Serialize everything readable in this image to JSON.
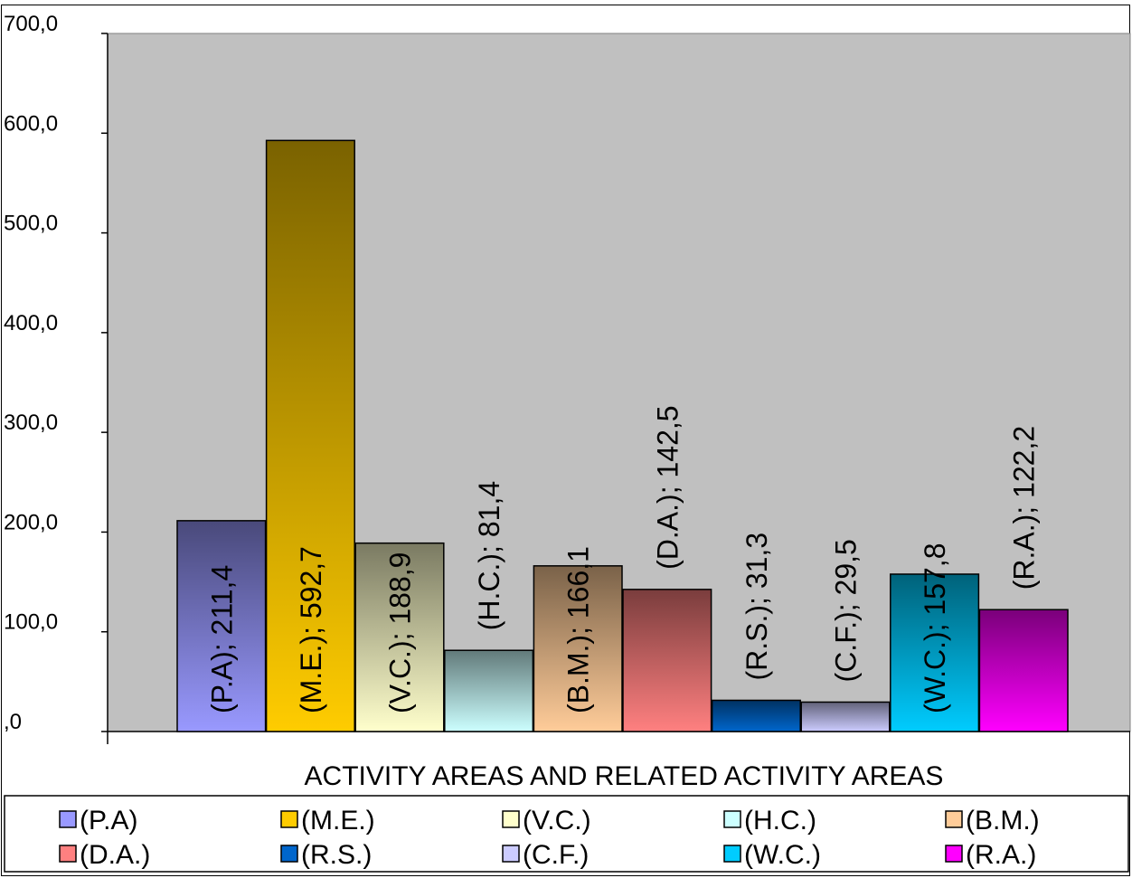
{
  "chart_data": {
    "type": "bar",
    "title": "",
    "xlabel": "ACTIVITY AREAS AND RELATED ACTIVITY AREAS",
    "ylabel": "",
    "ylim": [
      0,
      700
    ],
    "yticks": [
      "700,0",
      "600,0",
      "500,0",
      "400,0",
      "300,0",
      "200,0",
      "100,0",
      ",0"
    ],
    "categories": [
      "(P.A)",
      "(M.E.)",
      "(V.C.)",
      "(H.C.)",
      "(B.M.)",
      "(D.A.)",
      "(R.S.)",
      "(C.F.)",
      "(W.C.)",
      "(R.A.)"
    ],
    "values": [
      211.4,
      592.7,
      188.9,
      81.4,
      166.1,
      142.5,
      31.3,
      29.5,
      157.8,
      122.2
    ],
    "data_labels": [
      "(P.A); 211,4",
      "(M.E.); 592,7",
      "(V.C.); 188,9",
      "(H.C.); 81,4",
      "(B.M.); 166,1",
      "(D.A.); 142,5",
      "(R.S.); 31,3",
      "(C.F.); 29,5",
      "(W.C.); 157,8",
      "(R.A.); 122,2"
    ],
    "colors": [
      "#9999ff",
      "#ffcc00",
      "#ffffcc",
      "#ccffff",
      "#ffcc99",
      "#ff8080",
      "#0066cc",
      "#ccccff",
      "#00ccff",
      "#ff00ff"
    ],
    "gradient": true,
    "plot_background": "#c0c0c0",
    "grid": false,
    "legend_position": "bottom"
  }
}
